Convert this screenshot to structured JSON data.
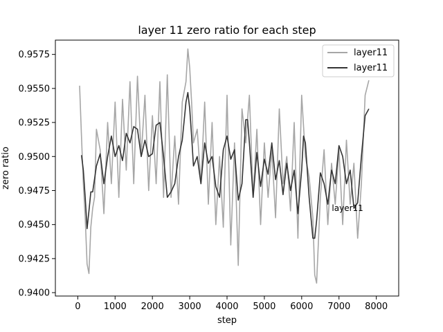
{
  "chart_data": {
    "type": "line",
    "title": "layer 11 zero ratio for each step",
    "xlabel": "step",
    "ylabel": "zero ratio",
    "xlim": [
      -600,
      8600
    ],
    "ylim": [
      0.93975,
      0.95855
    ],
    "xticks": [
      0,
      1000,
      2000,
      3000,
      4000,
      5000,
      6000,
      7000,
      8000
    ],
    "xtick_labels": [
      "0",
      "1000",
      "2000",
      "3000",
      "4000",
      "5000",
      "6000",
      "7000",
      "8000"
    ],
    "yticks": [
      0.94,
      0.9425,
      0.945,
      0.9475,
      0.95,
      0.9525,
      0.955,
      0.9575
    ],
    "ytick_labels": [
      "0.9400",
      "0.9425",
      "0.9450",
      "0.9475",
      "0.9500",
      "0.9525",
      "0.9550",
      "0.9575"
    ],
    "grid": false,
    "legend_position": "top-right",
    "legend": [
      "layer11",
      "layer11"
    ],
    "colors": {
      "raw": "#a6a6a6",
      "smoothed": "#333333"
    },
    "annotation": {
      "text": "layer11",
      "x": 7650,
      "y": 0.9462
    },
    "series": [
      {
        "name": "layer11",
        "style": "raw",
        "x": [
          50,
          100,
          150,
          200,
          250,
          300,
          350,
          400,
          450,
          500,
          600,
          700,
          800,
          900,
          1000,
          1100,
          1200,
          1300,
          1400,
          1500,
          1600,
          1700,
          1800,
          1900,
          2000,
          2100,
          2200,
          2300,
          2400,
          2500,
          2600,
          2700,
          2800,
          2900,
          2950,
          3000,
          3050,
          3100,
          3200,
          3300,
          3400,
          3500,
          3600,
          3700,
          3800,
          3900,
          4000,
          4100,
          4200,
          4300,
          4400,
          4500,
          4600,
          4700,
          4800,
          4900,
          5000,
          5100,
          5200,
          5300,
          5400,
          5500,
          5600,
          5700,
          5800,
          5900,
          6000,
          6100,
          6200,
          6300,
          6350,
          6400,
          6500,
          6600,
          6700,
          6800,
          6900,
          7000,
          7100,
          7200,
          7300,
          7400,
          7500,
          7600,
          7700,
          7800
        ],
        "y": [
          0.9552,
          0.9515,
          0.948,
          0.9455,
          0.9421,
          0.9414,
          0.9448,
          0.9462,
          0.947,
          0.952,
          0.9505,
          0.9458,
          0.9525,
          0.948,
          0.954,
          0.947,
          0.9542,
          0.949,
          0.9555,
          0.948,
          0.9559,
          0.95,
          0.9545,
          0.9475,
          0.953,
          0.948,
          0.9555,
          0.947,
          0.956,
          0.947,
          0.9515,
          0.9465,
          0.954,
          0.9555,
          0.9579,
          0.9565,
          0.954,
          0.951,
          0.952,
          0.948,
          0.954,
          0.9465,
          0.9525,
          0.945,
          0.95,
          0.9448,
          0.9545,
          0.9435,
          0.951,
          0.942,
          0.9535,
          0.951,
          0.9545,
          0.947,
          0.952,
          0.945,
          0.951,
          0.947,
          0.9505,
          0.9455,
          0.9535,
          0.948,
          0.95,
          0.946,
          0.9525,
          0.944,
          0.9545,
          0.95,
          0.9485,
          0.9455,
          0.9413,
          0.9407,
          0.947,
          0.9505,
          0.945,
          0.9495,
          0.9465,
          0.9505,
          0.945,
          0.9512,
          0.9465,
          0.9495,
          0.944,
          0.948,
          0.9545,
          0.9556
        ]
      },
      {
        "name": "layer11",
        "style": "smoothed",
        "x": [
          100,
          150,
          200,
          250,
          300,
          350,
          400,
          500,
          600,
          700,
          800,
          900,
          1000,
          1100,
          1200,
          1300,
          1400,
          1500,
          1600,
          1700,
          1800,
          1900,
          2000,
          2100,
          2200,
          2300,
          2400,
          2500,
          2600,
          2700,
          2800,
          2900,
          2950,
          3000,
          3050,
          3100,
          3200,
          3300,
          3400,
          3500,
          3600,
          3700,
          3800,
          3900,
          4000,
          4100,
          4200,
          4300,
          4400,
          4500,
          4550,
          4600,
          4700,
          4800,
          4900,
          5000,
          5100,
          5200,
          5300,
          5400,
          5500,
          5600,
          5700,
          5800,
          5900,
          6000,
          6050,
          6100,
          6200,
          6300,
          6350,
          6400,
          6500,
          6600,
          6700,
          6800,
          6900,
          7000,
          7100,
          7200,
          7300,
          7400,
          7500,
          7600,
          7700,
          7800
        ],
        "y": [
          0.9501,
          0.949,
          0.947,
          0.9447,
          0.946,
          0.9474,
          0.9474,
          0.9493,
          0.9502,
          0.948,
          0.95,
          0.9515,
          0.95,
          0.9508,
          0.9497,
          0.9517,
          0.951,
          0.9522,
          0.952,
          0.95,
          0.9512,
          0.95,
          0.9502,
          0.9523,
          0.9525,
          0.95,
          0.947,
          0.9474,
          0.948,
          0.95,
          0.9512,
          0.954,
          0.9547,
          0.9535,
          0.9515,
          0.9493,
          0.95,
          0.948,
          0.951,
          0.9495,
          0.95,
          0.9478,
          0.947,
          0.9505,
          0.9515,
          0.9498,
          0.9505,
          0.9468,
          0.948,
          0.9527,
          0.9527,
          0.951,
          0.947,
          0.9503,
          0.9478,
          0.9498,
          0.9487,
          0.951,
          0.9483,
          0.9497,
          0.9472,
          0.9495,
          0.9475,
          0.949,
          0.9458,
          0.949,
          0.9515,
          0.951,
          0.947,
          0.944,
          0.944,
          0.9453,
          0.9488,
          0.948,
          0.9465,
          0.949,
          0.948,
          0.9508,
          0.95,
          0.948,
          0.949,
          0.9462,
          0.9466,
          0.95,
          0.953,
          0.9535
        ]
      }
    ]
  }
}
